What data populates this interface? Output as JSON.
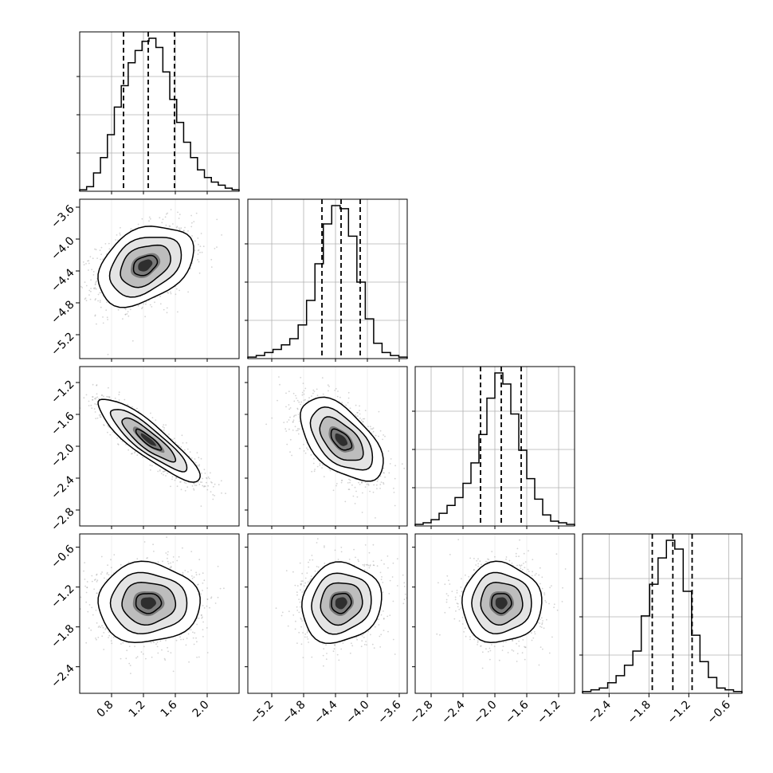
{
  "chart_data": {
    "type": "corner",
    "parameters": [
      {
        "range": [
          0.4,
          2.4
        ],
        "ticks": [
          "0.8",
          "1.2",
          "1.6",
          "2.0"
        ],
        "tick_values": [
          0.8,
          1.2,
          1.6,
          2.0
        ]
      },
      {
        "range": [
          -5.5,
          -3.5
        ],
        "ticks": [
          "−5.2",
          "−4.8",
          "−4.4",
          "−4.0",
          "−3.6"
        ],
        "tick_values": [
          -5.2,
          -4.8,
          -4.4,
          -4.0,
          -3.6
        ]
      },
      {
        "range": [
          -3.0,
          -1.0
        ],
        "ticks": [
          "−2.8",
          "−2.4",
          "−2.0",
          "−1.6",
          "−1.2"
        ],
        "tick_values": [
          -2.8,
          -2.4,
          -2.0,
          -1.6,
          -1.2
        ]
      },
      {
        "range": [
          -2.8,
          -0.4
        ],
        "ticks": [
          "−2.4",
          "−1.8",
          "−1.2",
          "−0.6"
        ],
        "tick_values": [
          -2.4,
          -1.8,
          -1.2,
          -0.6
        ]
      }
    ],
    "histograms": [
      {
        "param": 0,
        "counts": [
          0.01,
          0.03,
          0.12,
          0.22,
          0.37,
          0.55,
          0.69,
          0.84,
          0.92,
          0.98,
          1.0,
          0.94,
          0.78,
          0.6,
          0.45,
          0.32,
          0.22,
          0.14,
          0.09,
          0.06,
          0.04,
          0.02,
          0.01
        ],
        "quantiles": [
          0.95,
          1.26,
          1.59
        ],
        "hist_range": [
          0.4,
          2.4
        ]
      },
      {
        "param": 1,
        "counts": [
          0.01,
          0.02,
          0.04,
          0.06,
          0.09,
          0.13,
          0.22,
          0.38,
          0.62,
          0.88,
          1.0,
          0.98,
          0.8,
          0.5,
          0.26,
          0.1,
          0.04,
          0.02,
          0.01
        ],
        "quantiles": [
          -4.57,
          -4.33,
          -4.09
        ],
        "hist_range": [
          -5.5,
          -3.5
        ]
      },
      {
        "param": 2,
        "counts": [
          0.01,
          0.02,
          0.04,
          0.08,
          0.13,
          0.18,
          0.27,
          0.4,
          0.58,
          0.81,
          0.97,
          0.9,
          0.71,
          0.48,
          0.3,
          0.17,
          0.07,
          0.03,
          0.02,
          0.01
        ],
        "quantiles": [
          -2.18,
          -1.92,
          -1.67
        ],
        "hist_range": [
          -3.0,
          -1.0
        ]
      },
      {
        "param": 3,
        "counts": [
          0.01,
          0.02,
          0.03,
          0.06,
          0.1,
          0.16,
          0.24,
          0.44,
          0.62,
          0.77,
          0.87,
          0.82,
          0.58,
          0.33,
          0.18,
          0.09,
          0.03,
          0.02,
          0.01
        ],
        "quantiles": [
          -1.75,
          -1.44,
          -1.15
        ],
        "hist_range": [
          -2.8,
          -0.4
        ]
      }
    ],
    "pairs": [
      {
        "x_param": 0,
        "y_param": 1,
        "mean": [
          1.22,
          -4.33
        ],
        "sd": [
          0.3,
          0.25
        ],
        "corr": 0.35
      },
      {
        "x_param": 0,
        "y_param": 2,
        "mean": [
          1.26,
          -1.92
        ],
        "sd": [
          0.32,
          0.26
        ],
        "corr": -0.88
      },
      {
        "x_param": 1,
        "y_param": 2,
        "mean": [
          -4.33,
          -1.92
        ],
        "sd": [
          0.26,
          0.26
        ],
        "corr": -0.55
      },
      {
        "x_param": 0,
        "y_param": 3,
        "mean": [
          1.26,
          -1.44
        ],
        "sd": [
          0.32,
          0.3
        ],
        "corr": 0.0
      },
      {
        "x_param": 1,
        "y_param": 3,
        "mean": [
          -4.33,
          -1.44
        ],
        "sd": [
          0.25,
          0.3
        ],
        "corr": 0.1
      },
      {
        "x_param": 2,
        "y_param": 3,
        "mean": [
          -1.92,
          -1.44
        ],
        "sd": [
          0.25,
          0.3
        ],
        "corr": 0.0
      }
    ],
    "grid": true,
    "title": "",
    "xlabel": "",
    "ylabel": ""
  }
}
